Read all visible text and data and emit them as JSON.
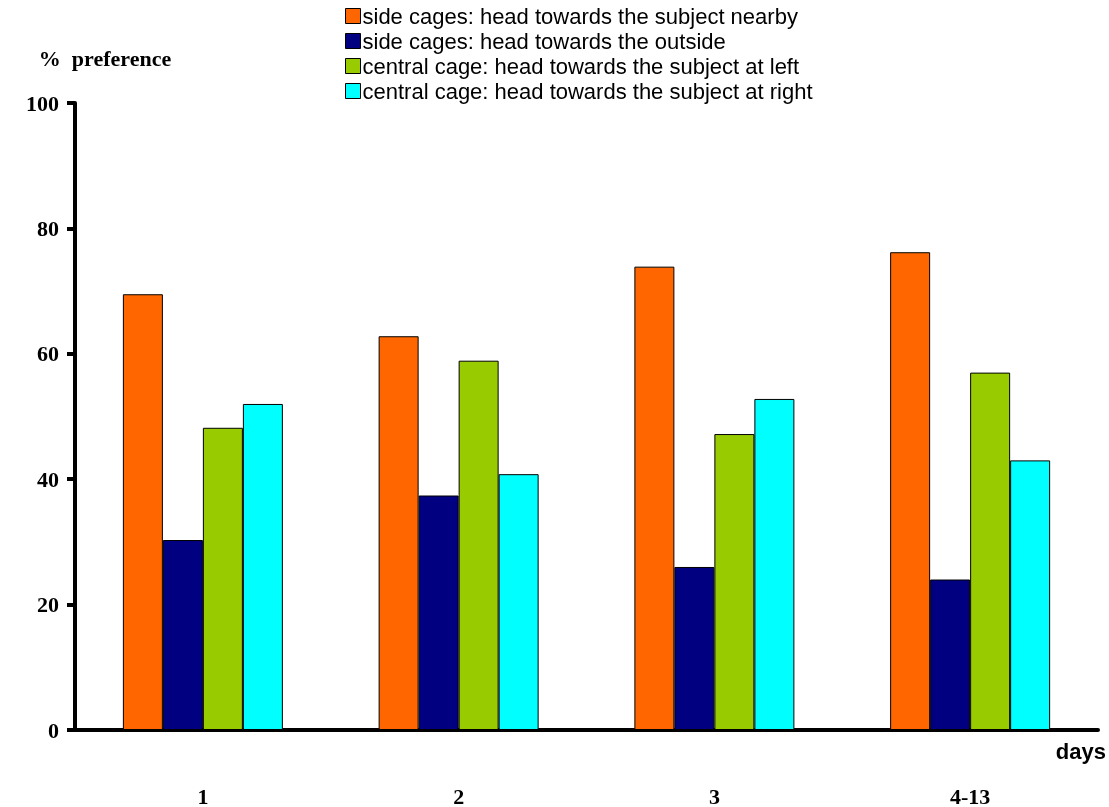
{
  "chart_data": {
    "type": "bar",
    "xlabel": "days",
    "ylabel": "%  preference",
    "categories": [
      "1",
      "2",
      "3",
      "4-13"
    ],
    "series": [
      {
        "name": "side cages: head towards the subject nearby",
        "color": "#ff6600",
        "values": [
          69.5,
          62.8,
          73.9,
          76.2
        ]
      },
      {
        "name": "side cages: head towards the outside",
        "color": "#000080",
        "values": [
          30.3,
          37.4,
          26.0,
          24.0
        ]
      },
      {
        "name": "central cage: head towards the subject at left",
        "color": "#99cc00",
        "values": [
          48.2,
          58.9,
          47.2,
          57.0
        ]
      },
      {
        "name": "central cage: head towards the subject at right",
        "color": "#00ffff",
        "values": [
          52.0,
          40.8,
          52.8,
          43.0
        ]
      }
    ],
    "ylim": [
      0,
      100
    ],
    "yticks": [
      0,
      20,
      40,
      60,
      80,
      100
    ],
    "grid": false,
    "legend": "top"
  }
}
